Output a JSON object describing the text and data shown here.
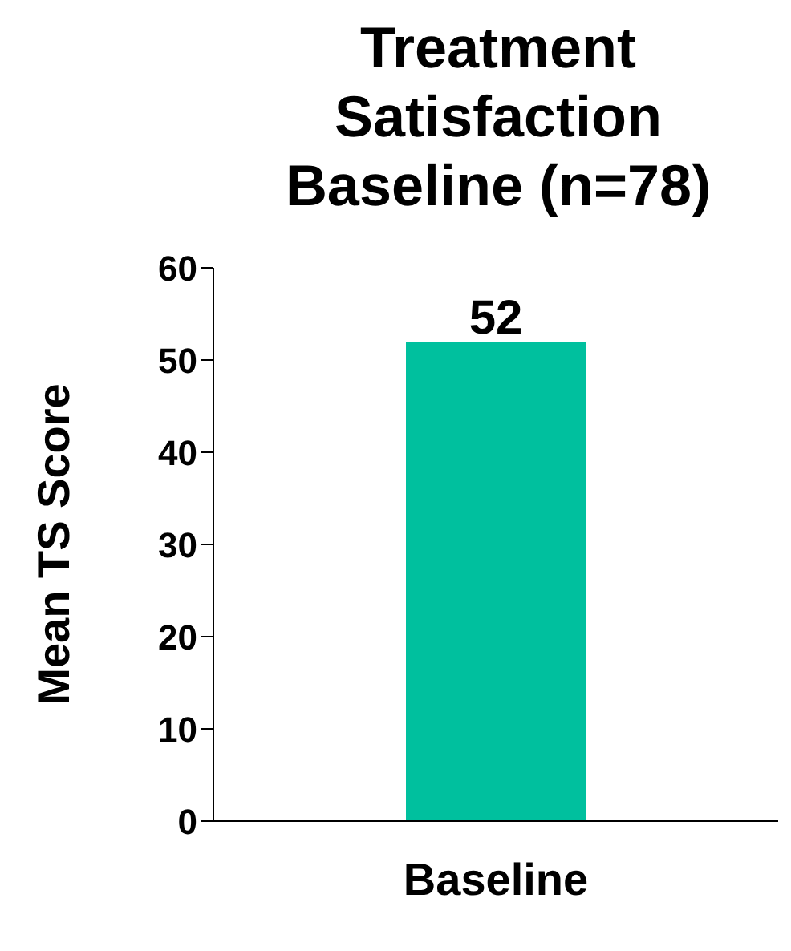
{
  "chart_data": {
    "type": "bar",
    "title": "Treatment Satisfaction Baseline (n=78)",
    "ylabel": "Mean TS Score",
    "categories": [
      "Baseline"
    ],
    "values": [
      52
    ],
    "color": "#00c09e",
    "ylim": [
      0,
      60
    ],
    "yticks": [
      0,
      10,
      20,
      30,
      40,
      50,
      60
    ],
    "data_labels": true,
    "grid": false
  }
}
